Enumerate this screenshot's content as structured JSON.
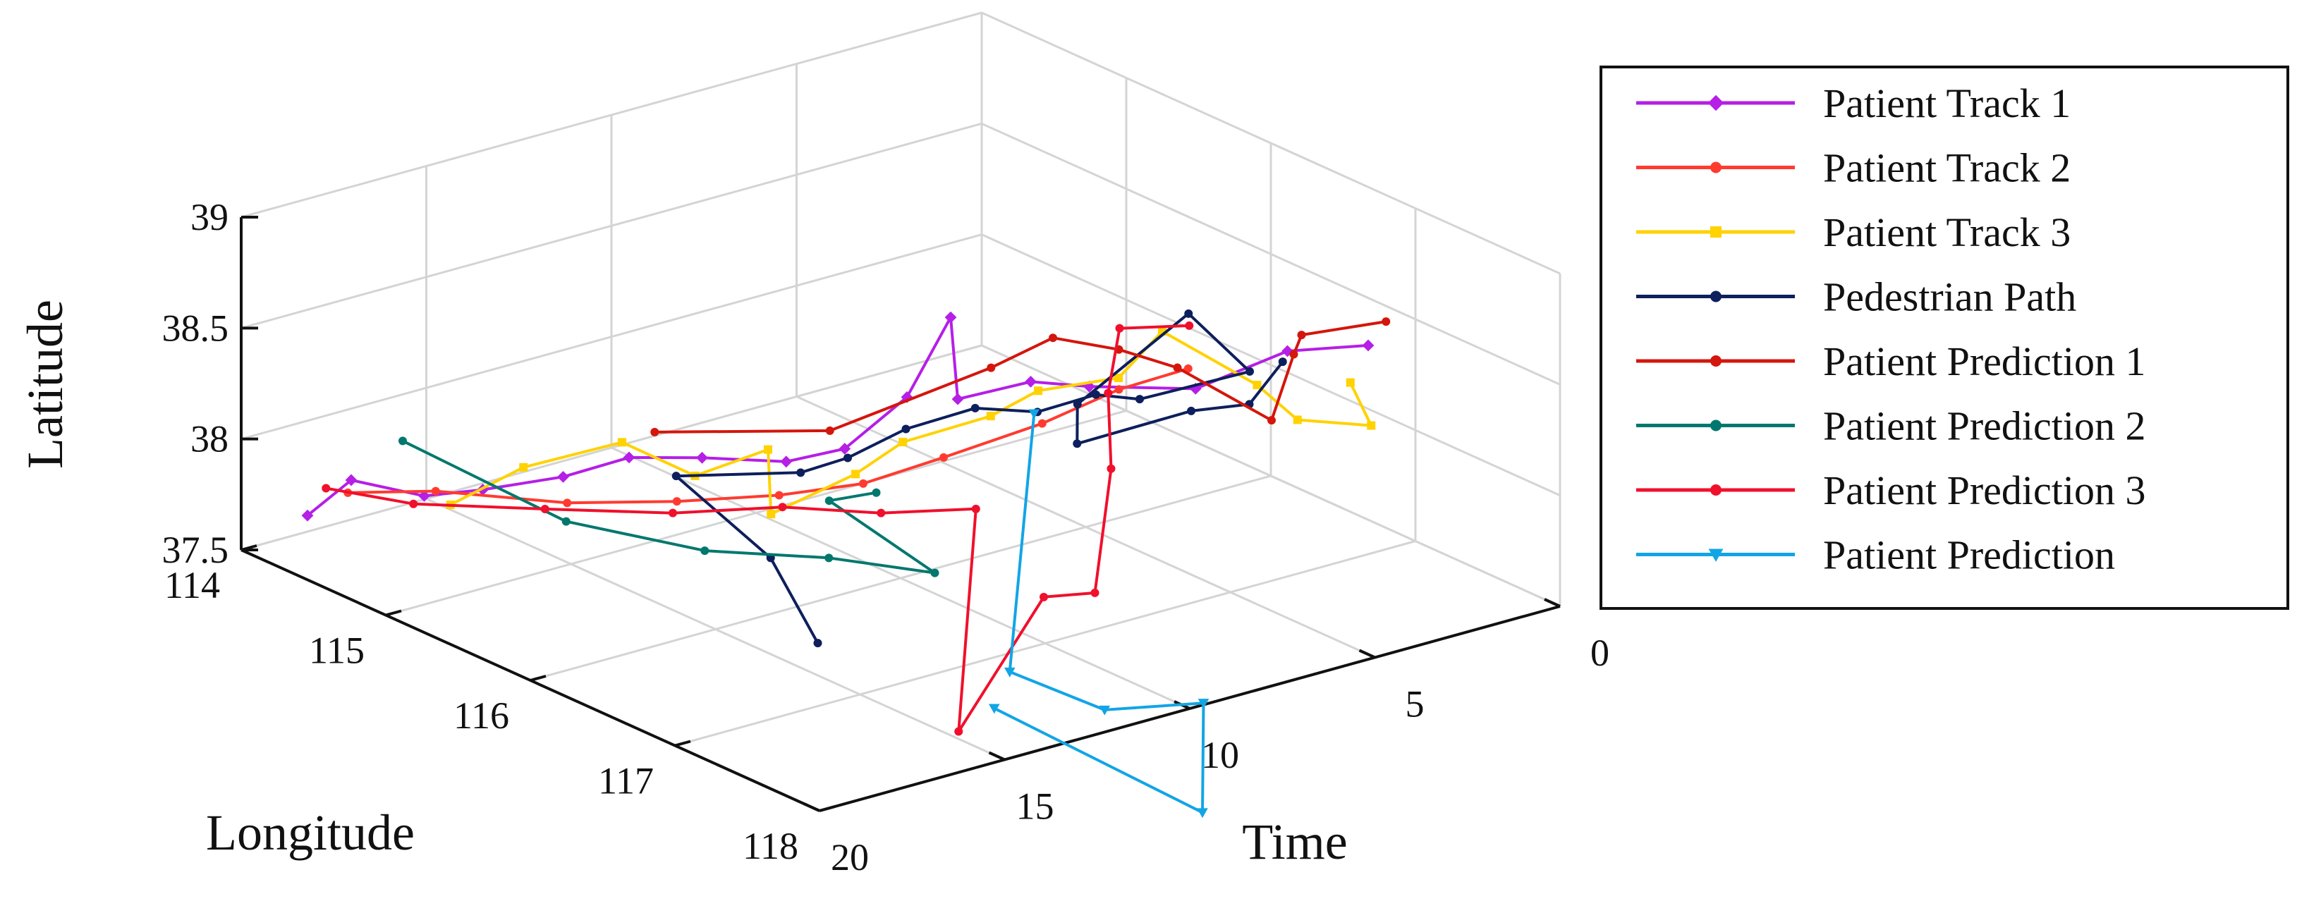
{
  "chart_data": {
    "type": "line",
    "projection": "3d",
    "title": "",
    "xlabel": "Time",
    "ylabel": "Longitude",
    "zlabel": "Latitude",
    "xlim": [
      0,
      20
    ],
    "ylim": [
      114,
      118
    ],
    "zlim": [
      37.5,
      39
    ],
    "x_ticks": [
      {
        "value": 0,
        "label": "0"
      },
      {
        "value": 5,
        "label": "5"
      },
      {
        "value": 10,
        "label": "10"
      },
      {
        "value": 15,
        "label": "15"
      },
      {
        "value": 20,
        "label": "20"
      }
    ],
    "y_ticks": [
      {
        "value": 114,
        "label": "114"
      },
      {
        "value": 115,
        "label": "115"
      },
      {
        "value": 116,
        "label": "116"
      },
      {
        "value": 117,
        "label": "117"
      },
      {
        "value": 118,
        "label": "118"
      }
    ],
    "z_ticks": [
      {
        "value": 37.5,
        "label": "37.5"
      },
      {
        "value": 38,
        "label": "38"
      },
      {
        "value": 38.5,
        "label": "38.5"
      },
      {
        "value": 39,
        "label": "39"
      }
    ],
    "grid": true,
    "legend_position": "right",
    "series": [
      {
        "name": "Patient Track 1",
        "color": "#b51fe6",
        "marker": "diamond",
        "points": [
          [
            18.6,
            114.1,
            37.62
          ],
          [
            18.2,
            114.3,
            37.82
          ],
          [
            17.4,
            114.6,
            37.8
          ],
          [
            16.6,
            114.8,
            37.85
          ],
          [
            15.6,
            115.1,
            37.95
          ],
          [
            14.6,
            115.3,
            38.05
          ],
          [
            13.8,
            115.6,
            38.1
          ],
          [
            12.7,
            115.9,
            38.12
          ],
          [
            11.9,
            116.1,
            38.2
          ],
          [
            11.0,
            116.3,
            38.45
          ],
          [
            10.6,
            116.5,
            38.85
          ],
          [
            10.8,
            116.6,
            38.52
          ],
          [
            10.0,
            116.9,
            38.65
          ],
          [
            9.2,
            117.1,
            38.65
          ],
          [
            7.5,
            117.4,
            38.65
          ],
          [
            5.8,
            117.6,
            38.8
          ],
          [
            4.4,
            117.8,
            38.82
          ]
        ]
      },
      {
        "name": "Patient Track 2",
        "color": "#ff3b30",
        "marker": "dot",
        "points": [
          [
            17.9,
            114.2,
            37.72
          ],
          [
            16.7,
            114.5,
            37.76
          ],
          [
            15.1,
            115.0,
            37.78
          ],
          [
            13.7,
            115.4,
            37.84
          ],
          [
            12.5,
            115.8,
            37.93
          ],
          [
            11.4,
            116.1,
            38.02
          ],
          [
            10.4,
            116.4,
            38.18
          ],
          [
            9.3,
            116.8,
            38.4
          ],
          [
            8.4,
            117.1,
            38.6
          ],
          [
            7.7,
            117.4,
            38.75
          ]
        ]
      },
      {
        "name": "Patient Track 3",
        "color": "#ffd200",
        "marker": "square",
        "points": [
          [
            16.3,
            114.5,
            37.68
          ],
          [
            15.5,
            114.8,
            37.9
          ],
          [
            14.4,
            115.2,
            38.08
          ],
          [
            13.6,
            115.5,
            37.98
          ],
          [
            12.8,
            115.8,
            38.15
          ],
          [
            13.5,
            116.0,
            37.95
          ],
          [
            12.0,
            116.2,
            38.12
          ],
          [
            11.5,
            116.4,
            38.3
          ],
          [
            10.3,
            116.7,
            38.45
          ],
          [
            9.8,
            116.9,
            38.6
          ],
          [
            8.8,
            117.2,
            38.7
          ],
          [
            8.4,
            117.4,
            38.95
          ],
          [
            7.4,
            117.8,
            38.78
          ],
          [
            6.7,
            117.9,
            38.62
          ],
          [
            5.1,
            118.0,
            38.55
          ],
          [
            4.1,
            117.6,
            38.58
          ]
        ]
      },
      {
        "name": "Pedestrian Path",
        "color": "#0d1f5c",
        "marker": "dot",
        "points": [
          [
            13.8,
            116.4,
            37.5
          ],
          [
            13.9,
            116.1,
            37.8
          ],
          [
            14.5,
            115.6,
            38.05
          ],
          [
            12.7,
            116.0,
            38.1
          ],
          [
            12.6,
            116.3,
            38.25
          ],
          [
            12.2,
            116.6,
            38.45
          ],
          [
            11.5,
            116.9,
            38.6
          ],
          [
            10.6,
            117.1,
            38.6
          ],
          [
            9.8,
            117.3,
            38.7
          ],
          [
            9.4,
            117.5,
            38.72
          ],
          [
            7.6,
            117.8,
            38.85
          ],
          [
            7.3,
            117.3,
            38.95
          ],
          [
            10.3,
            117.3,
            38.68
          ],
          [
            10.7,
            117.4,
            38.55
          ],
          [
            8.4,
            117.6,
            38.65
          ],
          [
            8.0,
            117.9,
            38.75
          ],
          [
            7.1,
            117.9,
            38.9
          ]
        ]
      },
      {
        "name": "Patient Prediction 1",
        "color": "#d4160c",
        "marker": "dot",
        "points": [
          [
            14.3,
            115.4,
            38.18
          ],
          [
            12.3,
            116.1,
            38.3
          ],
          [
            9.9,
            116.6,
            38.62
          ],
          [
            9.4,
            116.9,
            38.82
          ],
          [
            8.4,
            117.1,
            38.78
          ],
          [
            7.6,
            117.3,
            38.72
          ],
          [
            7.4,
            117.9,
            38.65
          ],
          [
            6.8,
            117.9,
            38.92
          ],
          [
            6.2,
            117.8,
            38.95
          ],
          [
            4.7,
            118.0,
            39.0
          ]
        ]
      },
      {
        "name": "Patient Prediction 2",
        "color": "#00786e",
        "marker": "dot",
        "points": [
          [
            17.2,
            114.4,
            37.98
          ],
          [
            16.3,
            115.3,
            37.84
          ],
          [
            14.9,
            115.9,
            37.82
          ],
          [
            13.5,
            116.4,
            37.87
          ],
          [
            12.2,
            116.8,
            37.86
          ],
          [
            13.1,
            116.3,
            38.08
          ],
          [
            13.0,
            116.6,
            38.2
          ]
        ]
      },
      {
        "name": "Patient Prediction 3",
        "color": "#f0102c",
        "marker": "dot",
        "points": [
          [
            18.1,
            114.1,
            37.72
          ],
          [
            17.3,
            114.5,
            37.73
          ],
          [
            15.7,
            115.0,
            37.78
          ],
          [
            14.2,
            115.5,
            37.84
          ],
          [
            12.8,
            115.9,
            37.92
          ],
          [
            11.7,
            116.3,
            37.96
          ],
          [
            10.7,
            116.7,
            38.05
          ],
          [
            13.9,
            117.4,
            37.4
          ],
          [
            11.6,
            117.4,
            37.9
          ],
          [
            11.0,
            117.6,
            37.95
          ],
          [
            9.0,
            117.2,
            38.3
          ],
          [
            8.3,
            117.0,
            38.55
          ],
          [
            7.6,
            116.9,
            38.78
          ],
          [
            6.5,
            117.1,
            38.8
          ]
        ]
      },
      {
        "name": "Patient Prediction",
        "color": "#12a5e6",
        "marker": "triangle",
        "points": [
          [
            10.3,
            117.0,
            38.55
          ],
          [
            13.3,
            117.6,
            37.7
          ],
          [
            12.3,
            118.0,
            37.6
          ],
          [
            10.8,
            118.3,
            37.65
          ],
          [
            12.0,
            118.6,
            37.3
          ],
          [
            14.5,
            117.8,
            37.65
          ]
        ]
      }
    ]
  }
}
